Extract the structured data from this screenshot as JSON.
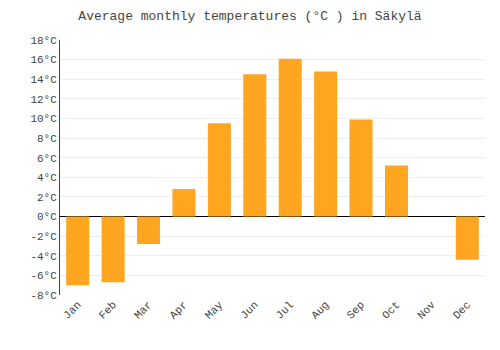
{
  "chart_data": {
    "type": "bar",
    "title": "Average monthly temperatures (°C ) in Säkylä",
    "categories": [
      "Jan",
      "Feb",
      "Mar",
      "Apr",
      "May",
      "Jun",
      "Jul",
      "Aug",
      "Sep",
      "Oct",
      "Nov",
      "Dec"
    ],
    "values": [
      -7.0,
      -6.7,
      -2.8,
      2.8,
      9.5,
      14.5,
      16.1,
      14.8,
      9.9,
      5.2,
      0.0,
      -4.4
    ],
    "color": "#FFA520",
    "ylim": [
      -8,
      18
    ],
    "yticks": [
      {
        "value": -8,
        "label": "-8°C"
      },
      {
        "value": -6,
        "label": "-6°C"
      },
      {
        "value": -4,
        "label": "-4°C"
      },
      {
        "value": -2,
        "label": "-2°C"
      },
      {
        "value": 0,
        "label": "0°C"
      },
      {
        "value": 2,
        "label": "2°C"
      },
      {
        "value": 4,
        "label": "4°C"
      },
      {
        "value": 6,
        "label": "6°C"
      },
      {
        "value": 8,
        "label": "8°C"
      },
      {
        "value": 10,
        "label": "10°C"
      },
      {
        "value": 12,
        "label": "12°C"
      },
      {
        "value": 14,
        "label": "14°C"
      },
      {
        "value": 16,
        "label": "16°C"
      },
      {
        "value": 18,
        "label": "18°C"
      }
    ],
    "grid": true
  }
}
